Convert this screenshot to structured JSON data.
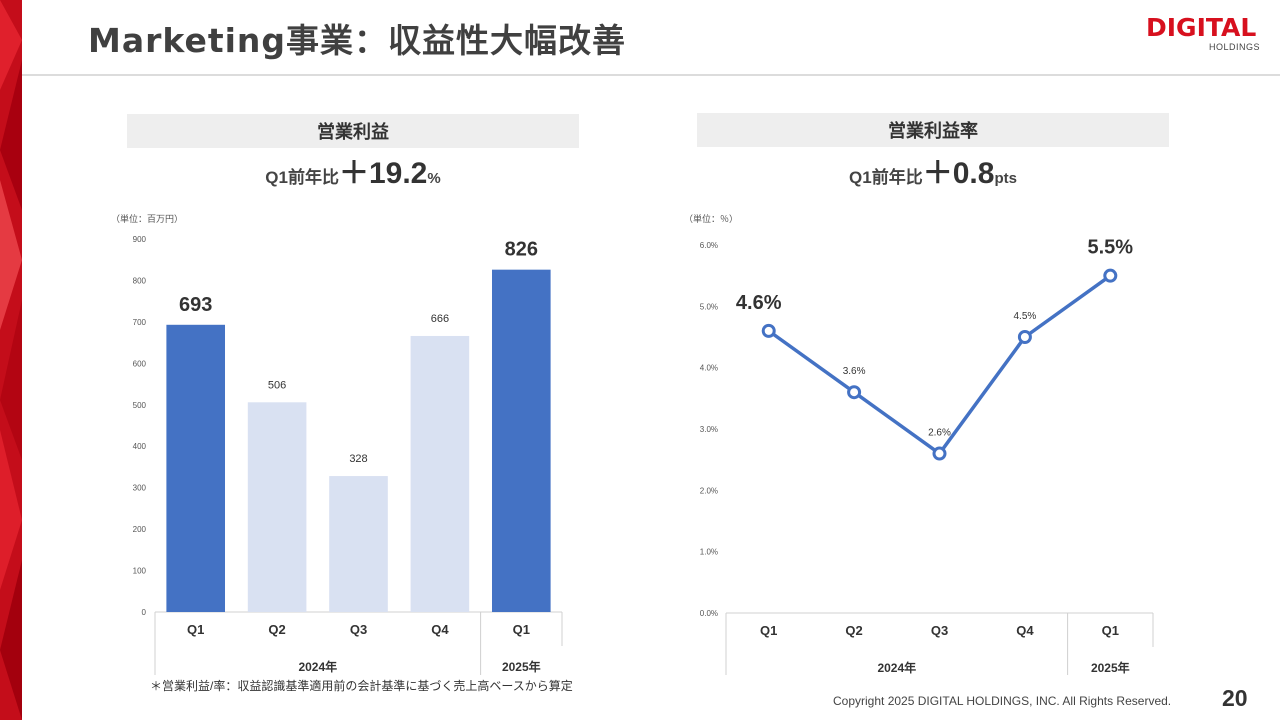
{
  "page": {
    "title": "Marketing事業：収益性大幅改善",
    "logo_text": "DIGITAL",
    "logo_sub": "HOLDINGS",
    "footnote": "＊営業利益/率：収益認識基準適用前の会計基準に基づく売上高ベースから算定",
    "copyright": "Copyright 2025 DIGITAL HOLDINGS, INC. All Rights Reserved.",
    "page_number": "20",
    "accent_color": "#d7101e"
  },
  "left_panel": {
    "heading": "営業利益",
    "yoy_prefix": "Q1前年比",
    "yoy_sign": "＋",
    "yoy_value": "19.2",
    "yoy_unit": "%"
  },
  "right_panel": {
    "heading": "営業利益率",
    "yoy_prefix": "Q1前年比",
    "yoy_sign": "＋",
    "yoy_value": "0.8",
    "yoy_unit": "pts"
  },
  "chart_data": [
    {
      "type": "bar",
      "title": "営業利益",
      "unit_label": "（単位：百万円）",
      "categories": [
        "Q1",
        "Q2",
        "Q3",
        "Q4",
        "Q1"
      ],
      "groups": [
        {
          "label": "2024年",
          "span": 4
        },
        {
          "label": "2025年",
          "span": 1
        }
      ],
      "values": [
        693,
        506,
        328,
        666,
        826
      ],
      "highlight": [
        true,
        false,
        false,
        false,
        true
      ],
      "yticks": [
        0,
        100,
        200,
        300,
        400,
        500,
        600,
        700,
        800,
        900
      ],
      "ylim": [
        0,
        900
      ],
      "colors": {
        "highlight": "#4472c4",
        "normal": "#d9e1f2"
      }
    },
    {
      "type": "line",
      "title": "営業利益率",
      "unit_label": "（単位：％）",
      "categories": [
        "Q1",
        "Q2",
        "Q3",
        "Q4",
        "Q1"
      ],
      "groups": [
        {
          "label": "2024年",
          "span": 4
        },
        {
          "label": "2025年",
          "span": 1
        }
      ],
      "values": [
        4.6,
        3.6,
        2.6,
        4.5,
        5.5
      ],
      "labels": [
        "4.6%",
        "3.6%",
        "2.6%",
        "4.5%",
        "5.5%"
      ],
      "highlight": [
        true,
        false,
        false,
        false,
        true
      ],
      "yticks": [
        "0.0%",
        "1.0%",
        "2.0%",
        "3.0%",
        "4.0%",
        "5.0%",
        "6.0%"
      ],
      "ylim": [
        0,
        6
      ],
      "colors": {
        "line": "#4472c4"
      }
    }
  ]
}
